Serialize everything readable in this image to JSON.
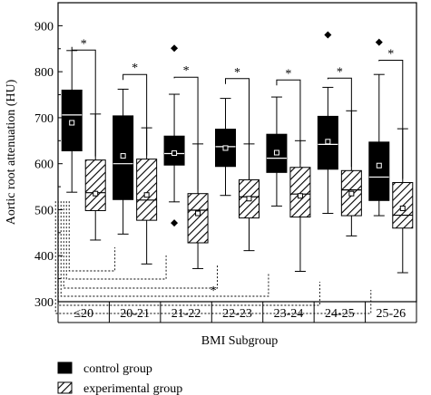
{
  "chart_data": {
    "type": "boxplot",
    "xlabel": "BMI Subgroup",
    "ylabel": "Aortic root attenuation (HU)",
    "ylim": [
      300,
      950
    ],
    "yticks": [
      300,
      400,
      500,
      600,
      700,
      800,
      900
    ],
    "categories": [
      "≤20",
      "20-21",
      "21-22",
      "22-23",
      "23-24",
      "24-25",
      "25-26"
    ],
    "legend_position": "bottom-left",
    "series": [
      {
        "name": "control group",
        "fill": "solid-black",
        "boxes": [
          {
            "whisker_low": 538,
            "q1": 628,
            "median": 706,
            "q3": 760,
            "whisker_high": 846,
            "mean": 689,
            "outliers": []
          },
          {
            "whisker_low": 447,
            "q1": 522,
            "median": 600,
            "q3": 704,
            "whisker_high": 762,
            "mean": 617,
            "outliers": []
          },
          {
            "whisker_low": 517,
            "q1": 597,
            "median": 622,
            "q3": 660,
            "whisker_high": 751,
            "mean": 623,
            "outliers": [
              471,
              851
            ]
          },
          {
            "whisker_low": 531,
            "q1": 594,
            "median": 637,
            "q3": 675,
            "whisker_high": 742,
            "mean": 634,
            "outliers": []
          },
          {
            "whisker_low": 508,
            "q1": 581,
            "median": 612,
            "q3": 664,
            "whisker_high": 745,
            "mean": 624,
            "outliers": []
          },
          {
            "whisker_low": 492,
            "q1": 588,
            "median": 642,
            "q3": 703,
            "whisker_high": 766,
            "mean": 648,
            "outliers": [
              880
            ]
          },
          {
            "whisker_low": 487,
            "q1": 520,
            "median": 571,
            "q3": 647,
            "whisker_high": 794,
            "mean": 596,
            "outliers": [
              864
            ]
          }
        ]
      },
      {
        "name": "experimental group",
        "fill": "diagonal-hatch",
        "boxes": [
          {
            "whisker_low": 434,
            "q1": 498,
            "median": 537,
            "q3": 608,
            "whisker_high": 708,
            "mean": 535,
            "outliers": []
          },
          {
            "whisker_low": 382,
            "q1": 477,
            "median": 521,
            "q3": 610,
            "whisker_high": 678,
            "mean": 532,
            "outliers": []
          },
          {
            "whisker_low": 372,
            "q1": 428,
            "median": 499,
            "q3": 535,
            "whisker_high": 643,
            "mean": 492,
            "outliers": []
          },
          {
            "whisker_low": 411,
            "q1": 482,
            "median": 528,
            "q3": 565,
            "whisker_high": 643,
            "mean": 524,
            "outliers": []
          },
          {
            "whisker_low": 366,
            "q1": 484,
            "median": 534,
            "q3": 592,
            "whisker_high": 650,
            "mean": 530,
            "outliers": []
          },
          {
            "whisker_low": 443,
            "q1": 487,
            "median": 543,
            "q3": 585,
            "whisker_high": 715,
            "mean": 535,
            "outliers": []
          },
          {
            "whisker_low": 363,
            "q1": 460,
            "median": 488,
            "q3": 559,
            "whisker_high": 676,
            "mean": 503,
            "outliers": []
          }
        ]
      }
    ],
    "within_group_significance": {
      "marker": "*",
      "bracket_tops": [
        847,
        794,
        788,
        785,
        782,
        786,
        825
      ]
    },
    "cross_group_significance": {
      "marker": "*",
      "reference_category": "≤20",
      "targets": [
        "20-21",
        "21-22",
        "22-23",
        "23-24",
        "24-25",
        "25-26"
      ],
      "star_on_bracket": "23-24"
    }
  },
  "legend": {
    "control_label": "control group",
    "experimental_label": "experimental group"
  }
}
